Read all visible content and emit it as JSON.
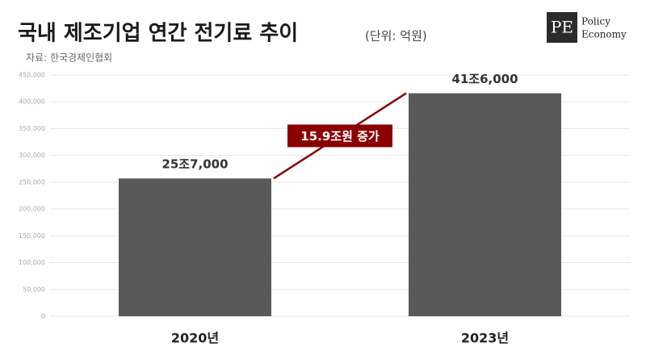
{
  "chart_data": {
    "type": "bar",
    "title": "국내 제조기업 연간 전기료 추이",
    "subtitle": "(단위: 억원)",
    "source": "자료: 한국경제인협회",
    "categories": [
      "2020년",
      "2023년"
    ],
    "values": [
      257000,
      416000
    ],
    "value_labels": [
      "25조7,000",
      "41조6,000"
    ],
    "color": "#595959",
    "annotation": "15.9조원 증가",
    "annotation_color": "#8b0000",
    "ylim": [
      0,
      450000
    ],
    "yticks": [
      0,
      {
        "value": 50000,
        "label": "50,000"
      },
      {
        "value": 100000,
        "label": "100,000"
      },
      {
        "value": 150000,
        "label": "150,000"
      },
      {
        "value": 200000,
        "label": "200,000"
      },
      {
        "value": 250000,
        "label": "250,000"
      },
      {
        "value": 300000,
        "label": "300,000"
      },
      {
        "value": 350000,
        "label": "350,000"
      },
      {
        "value": 400000,
        "label": "400,000"
      },
      {
        "value": 450000,
        "label": "450,000"
      }
    ],
    "grid": true
  },
  "branding": {
    "mark": "PE",
    "name": [
      "Policy",
      "Economy"
    ]
  }
}
